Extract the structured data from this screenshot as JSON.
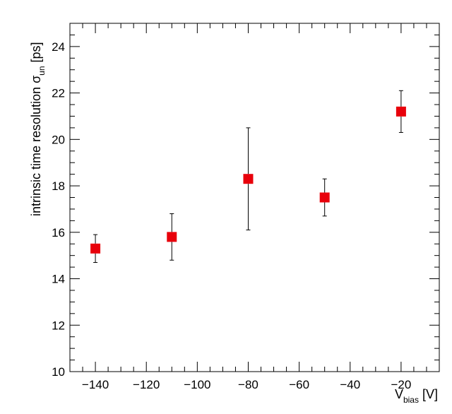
{
  "chart_data": {
    "type": "scatter",
    "x": [
      -140,
      -110,
      -80,
      -50,
      -20
    ],
    "y": [
      15.3,
      15.8,
      18.3,
      17.5,
      21.2
    ],
    "y_err_low": [
      0.6,
      1.0,
      2.2,
      0.8,
      0.9
    ],
    "y_err_high": [
      0.6,
      1.0,
      2.2,
      0.8,
      0.9
    ],
    "xlim": [
      -150,
      -5
    ],
    "ylim": [
      10,
      25
    ],
    "xticks": [
      -140,
      -120,
      -100,
      -80,
      -60,
      -40,
      -20
    ],
    "yticks": [
      10,
      12,
      14,
      16,
      18,
      20,
      22,
      24
    ],
    "xtick_labels": [
      "−140",
      "−120",
      "−100",
      "−80",
      "−60",
      "−40",
      "−20"
    ],
    "ytick_labels": [
      "10",
      "12",
      "14",
      "16",
      "18",
      "20",
      "22",
      "24"
    ],
    "xlabel_main": "V",
    "xlabel_sub": "bias",
    "xlabel_unit": " [V]",
    "ylabel_main": "intrinsic time resolution σ",
    "ylabel_sub": "un",
    "ylabel_unit": " [ps]",
    "grid": false,
    "marker": "square",
    "marker_color": "#e8000b",
    "errorbar_color": "#000000"
  }
}
